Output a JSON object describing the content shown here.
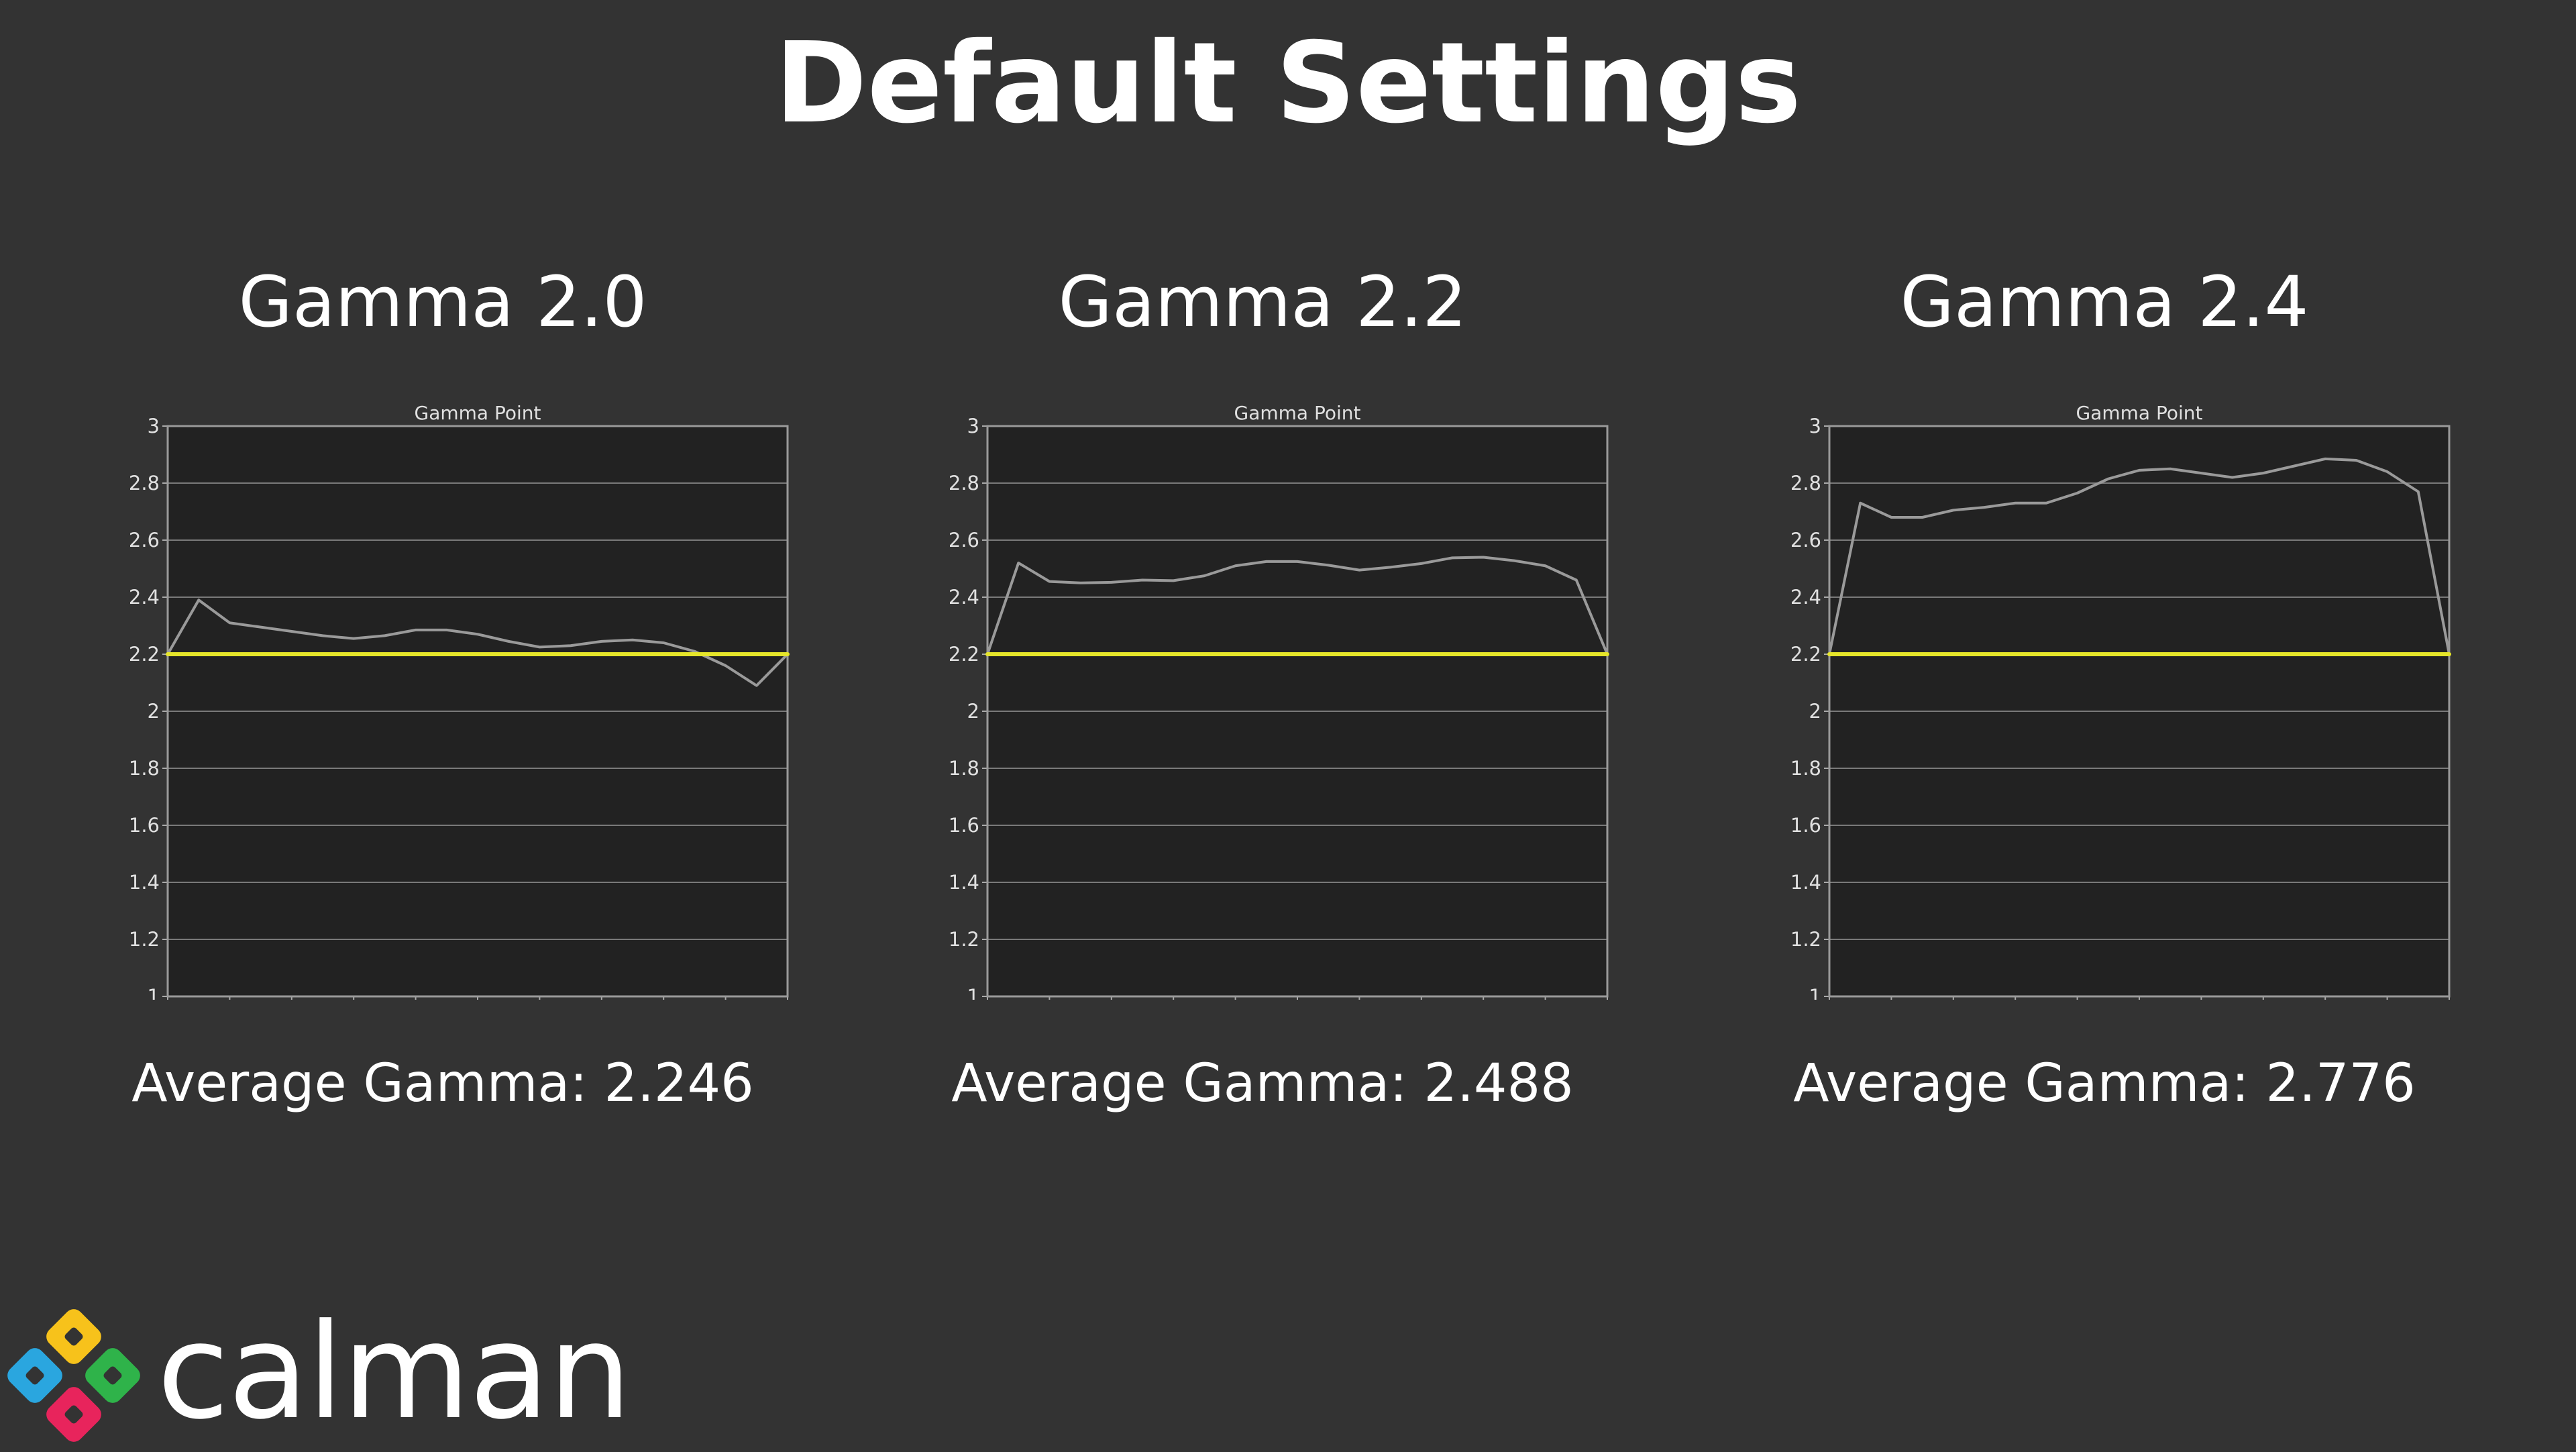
{
  "page": {
    "title": "Default Settings"
  },
  "logo": {
    "text": "calman",
    "colors": [
      "#f7c21b",
      "#2fb34a",
      "#e8245c",
      "#2aa6df"
    ]
  },
  "colors": {
    "reference": "#e5e52a",
    "measured": "#9a9a9a",
    "plot_bg": "#222222",
    "grid": "#7a7a7a"
  },
  "chart_data": [
    {
      "type": "line",
      "panel_title": "Gamma 2.0",
      "title": "Gamma Point",
      "average_label": "Average Gamma:",
      "average_value": "2.246",
      "x": [
        0,
        5,
        10,
        15,
        20,
        25,
        30,
        35,
        40,
        45,
        50,
        55,
        60,
        65,
        70,
        75,
        80,
        85,
        90,
        95,
        100
      ],
      "xlim": [
        0,
        100
      ],
      "ylim": [
        1,
        3
      ],
      "xticks": [
        "0",
        "10",
        "20",
        "30",
        "40",
        "50",
        "60",
        "70",
        "80",
        "90",
        "100"
      ],
      "yticks": [
        "1",
        "1.2",
        "1.4",
        "1.6",
        "1.8",
        "2",
        "2.2",
        "2.4",
        "2.6",
        "2.8",
        "3"
      ],
      "grid": true,
      "series": [
        {
          "values": [
            2.2,
            2.39,
            2.31,
            2.295,
            2.28,
            2.265,
            2.255,
            2.265,
            2.285,
            2.285,
            2.27,
            2.245,
            2.225,
            2.23,
            2.245,
            2.25,
            2.24,
            2.21,
            2.16,
            2.09,
            2.2
          ]
        },
        {
          "values": [
            2.2,
            2.2,
            2.2,
            2.2,
            2.2,
            2.2,
            2.2,
            2.2,
            2.2,
            2.2,
            2.2,
            2.2,
            2.2,
            2.2,
            2.2,
            2.2,
            2.2,
            2.2,
            2.2,
            2.2,
            2.2
          ]
        }
      ]
    },
    {
      "type": "line",
      "panel_title": "Gamma 2.2",
      "title": "Gamma Point",
      "average_label": "Average Gamma:",
      "average_value": "2.488",
      "x": [
        0,
        5,
        10,
        15,
        20,
        25,
        30,
        35,
        40,
        45,
        50,
        55,
        60,
        65,
        70,
        75,
        80,
        85,
        90,
        95,
        100
      ],
      "xlim": [
        0,
        100
      ],
      "ylim": [
        1,
        3
      ],
      "xticks": [
        "0",
        "10",
        "20",
        "30",
        "40",
        "50",
        "60",
        "70",
        "80",
        "90",
        "100"
      ],
      "yticks": [
        "1",
        "1.2",
        "1.4",
        "1.6",
        "1.8",
        "2",
        "2.2",
        "2.4",
        "2.6",
        "2.8",
        "3"
      ],
      "grid": true,
      "series": [
        {
          "values": [
            2.2,
            2.52,
            2.455,
            2.45,
            2.452,
            2.46,
            2.458,
            2.475,
            2.51,
            2.525,
            2.525,
            2.512,
            2.495,
            2.505,
            2.518,
            2.538,
            2.54,
            2.528,
            2.51,
            2.46,
            2.2
          ]
        },
        {
          "values": [
            2.2,
            2.2,
            2.2,
            2.2,
            2.2,
            2.2,
            2.2,
            2.2,
            2.2,
            2.2,
            2.2,
            2.2,
            2.2,
            2.2,
            2.2,
            2.2,
            2.2,
            2.2,
            2.2,
            2.2,
            2.2
          ]
        }
      ]
    },
    {
      "type": "line",
      "panel_title": "Gamma 2.4",
      "title": "Gamma Point",
      "average_label": "Average Gamma:",
      "average_value": "2.776",
      "x": [
        0,
        5,
        10,
        15,
        20,
        25,
        30,
        35,
        40,
        45,
        50,
        55,
        60,
        65,
        70,
        75,
        80,
        85,
        90,
        95,
        100
      ],
      "xlim": [
        0,
        100
      ],
      "ylim": [
        1,
        3
      ],
      "xticks": [
        "0",
        "10",
        "20",
        "30",
        "40",
        "50",
        "60",
        "70",
        "80",
        "90",
        "100"
      ],
      "yticks": [
        "1",
        "1.2",
        "1.4",
        "1.6",
        "1.8",
        "2",
        "2.2",
        "2.4",
        "2.6",
        "2.8",
        "3"
      ],
      "grid": true,
      "series": [
        {
          "values": [
            2.2,
            2.73,
            2.68,
            2.68,
            2.705,
            2.715,
            2.73,
            2.73,
            2.765,
            2.815,
            2.845,
            2.85,
            2.835,
            2.82,
            2.835,
            2.86,
            2.885,
            2.88,
            2.84,
            2.77,
            2.2
          ]
        },
        {
          "values": [
            2.2,
            2.2,
            2.2,
            2.2,
            2.2,
            2.2,
            2.2,
            2.2,
            2.2,
            2.2,
            2.2,
            2.2,
            2.2,
            2.2,
            2.2,
            2.2,
            2.2,
            2.2,
            2.2,
            2.2,
            2.2
          ]
        }
      ]
    }
  ]
}
